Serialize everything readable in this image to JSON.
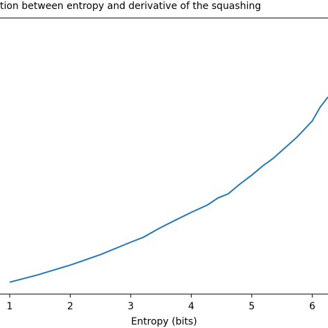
{
  "chart_data": {
    "type": "line",
    "title": "tion between entropy and derivative of the squashing",
    "x_label": "Entropy (bits)",
    "x": [
      1,
      1.47,
      2,
      2.5,
      3,
      3.21,
      3.47,
      3.74,
      4,
      4.27,
      4.44,
      4.61,
      4.79,
      5,
      5.18,
      5.35,
      5.53,
      5.75,
      6,
      6.13,
      6.26
    ],
    "values": [
      0.043,
      0.07,
      0.105,
      0.143,
      0.188,
      0.206,
      0.238,
      0.268,
      0.296,
      0.323,
      0.348,
      0.363,
      0.396,
      0.431,
      0.464,
      0.491,
      0.526,
      0.569,
      0.627,
      0.677,
      0.714
    ],
    "color": "#1f77b4",
    "xlim": [
      0.84,
      6.26
    ],
    "xticks": [
      1,
      2,
      3,
      4,
      5,
      6
    ],
    "ylim": [
      0,
      1
    ]
  }
}
